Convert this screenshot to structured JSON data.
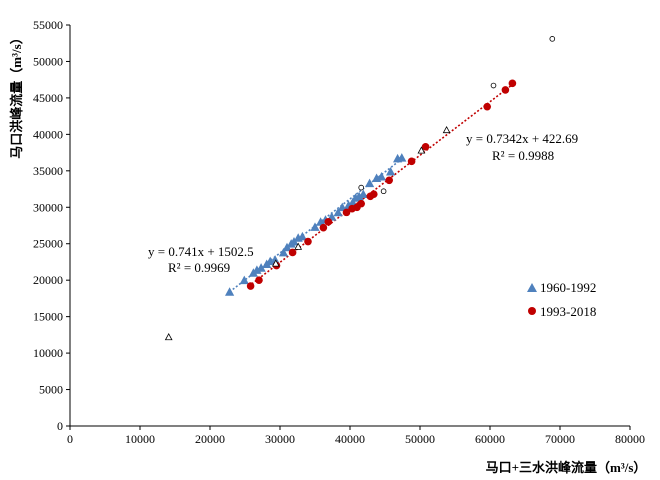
{
  "chart_data": {
    "type": "scatter",
    "xlabel": "马口+三水洪峰流量（m³/s）",
    "ylabel": "马口洪峰流量（m³/s）",
    "xlim": [
      0,
      80000
    ],
    "ylim": [
      0,
      55000
    ],
    "x_ticks": [
      "0",
      "10000",
      "20000",
      "30000",
      "40000",
      "50000",
      "60000",
      "70000",
      "80000"
    ],
    "y_ticks": [
      "0",
      "5000",
      "10000",
      "15000",
      "20000",
      "25000",
      "30000",
      "35000",
      "40000",
      "45000",
      "50000",
      "55000"
    ],
    "grid": false,
    "legend_position": "right",
    "series": [
      {
        "name": "1960-1992",
        "marker": "triangle",
        "color": "#4f81bd",
        "points": [
          [
            22800,
            18400
          ],
          [
            24900,
            20000
          ],
          [
            26200,
            21000
          ],
          [
            26700,
            21400
          ],
          [
            27300,
            21700
          ],
          [
            28100,
            22200
          ],
          [
            28600,
            22600
          ],
          [
            29300,
            22800
          ],
          [
            30500,
            23800
          ],
          [
            31000,
            24500
          ],
          [
            31600,
            25000
          ],
          [
            32000,
            25300
          ],
          [
            32600,
            25800
          ],
          [
            33200,
            26000
          ],
          [
            35000,
            27300
          ],
          [
            35800,
            28000
          ],
          [
            36500,
            28300
          ],
          [
            37400,
            28700
          ],
          [
            38300,
            29300
          ],
          [
            38900,
            30000
          ],
          [
            39800,
            30300
          ],
          [
            40400,
            30700
          ],
          [
            40800,
            31300
          ],
          [
            41300,
            31500
          ],
          [
            41900,
            31800
          ],
          [
            42800,
            33300
          ],
          [
            43800,
            34000
          ],
          [
            44500,
            34200
          ],
          [
            45800,
            34900
          ],
          [
            46800,
            36700
          ],
          [
            47400,
            36800
          ]
        ]
      },
      {
        "name": "1993-2018",
        "marker": "circle",
        "color": "#c00000",
        "points": [
          [
            25800,
            19200
          ],
          [
            27000,
            20000
          ],
          [
            29500,
            22000
          ],
          [
            31800,
            23800
          ],
          [
            34000,
            25300
          ],
          [
            36200,
            27200
          ],
          [
            36900,
            28000
          ],
          [
            39500,
            29300
          ],
          [
            40300,
            29800
          ],
          [
            41000,
            30000
          ],
          [
            41600,
            30500
          ],
          [
            42900,
            31500
          ],
          [
            43400,
            31800
          ],
          [
            45600,
            33700
          ],
          [
            48800,
            36300
          ],
          [
            50800,
            38300
          ],
          [
            59600,
            43800
          ],
          [
            62200,
            46100
          ],
          [
            63200,
            47000
          ]
        ]
      },
      {
        "marker": "triangle-open",
        "color": "#000000",
        "points": [
          [
            14100,
            12200
          ],
          [
            29400,
            22300
          ],
          [
            32600,
            24600
          ],
          [
            53800,
            40600
          ],
          [
            50200,
            37800
          ]
        ]
      },
      {
        "marker": "circle-open",
        "color": "#000000",
        "points": [
          [
            41600,
            32700
          ],
          [
            44800,
            32200
          ],
          [
            60500,
            46700
          ],
          [
            68900,
            53100
          ]
        ]
      }
    ],
    "trendlines": [
      {
        "slope": 0.741,
        "intercept": 1502.5,
        "x_range": [
          22800,
          47400
        ],
        "color": "#4f81bd",
        "equation": "y = 0.741x + 1502.5",
        "r2": "R² = 0.9969"
      },
      {
        "slope": 0.7342,
        "intercept": 422.69,
        "x_range": [
          25500,
          63500
        ],
        "color": "#c00000",
        "equation": "y = 0.7342x + 422.69",
        "r2": "R² = 0.9988"
      }
    ]
  }
}
